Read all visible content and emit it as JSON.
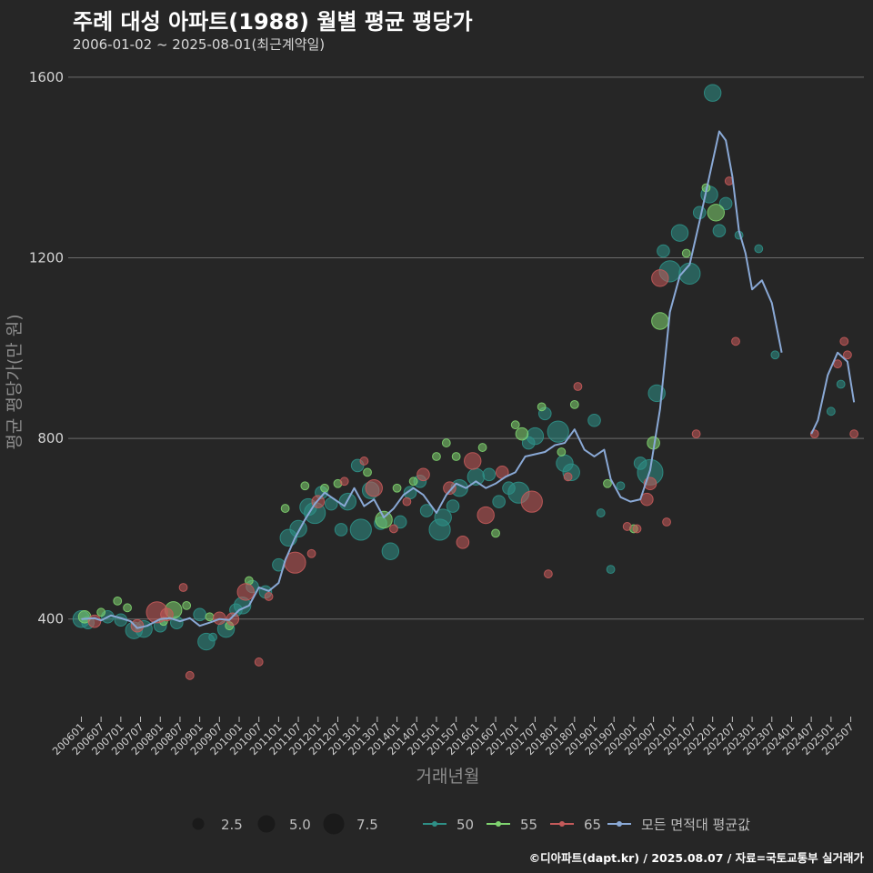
{
  "title": "주례 대성 아파트(1988) 월별 평균 평당가",
  "subtitle": "2006-01-02 ~ 2025-08-01(최근계약일)",
  "credit": "©디아파트(dapt.kr) / 2025.08.07 / 자료=국토교통부 실거래가",
  "colors": {
    "background": "#262626",
    "grid": "#6b6b6b",
    "s50": "#2e8f86",
    "s55": "#7fd36f",
    "s65": "#c45a5a",
    "avg": "#8aa9d6"
  },
  "chart_data": {
    "type": "scatter",
    "title": "주례 대성 아파트(1988) 월별 평균 평당가",
    "xlabel": "거래년월",
    "ylabel": "평균 평당가(만 원)",
    "ylim": [
      180,
      1650
    ],
    "xlim": [
      "2005-09",
      "2025-11"
    ],
    "yticks": [
      400,
      800,
      1200,
      1600
    ],
    "xticks": [
      "200601",
      "200607",
      "200701",
      "200707",
      "200801",
      "200807",
      "200901",
      "200907",
      "201001",
      "201007",
      "201101",
      "201107",
      "201201",
      "201207",
      "201301",
      "201307",
      "201401",
      "201407",
      "201501",
      "201507",
      "201601",
      "201607",
      "201701",
      "201707",
      "201801",
      "201807",
      "201901",
      "201907",
      "202001",
      "202007",
      "202101",
      "202107",
      "202201",
      "202207",
      "202301",
      "202307",
      "202401",
      "202407",
      "202501",
      "202507"
    ],
    "grid": true,
    "legend_position": "bottom",
    "size_legend": {
      "values": [
        "2.5",
        "5.0",
        "7.5"
      ]
    },
    "series_legend": [
      "50",
      "55",
      "65",
      "모든 면적대 평균값"
    ],
    "series": [
      {
        "name": "50",
        "points": [
          [
            "2006-01",
            400,
            3
          ],
          [
            "2006-03",
            392,
            2
          ],
          [
            "2006-09",
            405,
            2
          ],
          [
            "2007-01",
            398,
            2
          ],
          [
            "2007-05",
            375,
            3
          ],
          [
            "2007-08",
            378,
            3
          ],
          [
            "2008-01",
            385,
            2
          ],
          [
            "2008-06",
            392,
            2
          ],
          [
            "2009-01",
            410,
            2
          ],
          [
            "2009-03",
            350,
            3
          ],
          [
            "2009-05",
            360,
            1
          ],
          [
            "2009-09",
            378,
            3
          ],
          [
            "2009-12",
            420,
            2
          ],
          [
            "2010-02",
            430,
            3
          ],
          [
            "2010-05",
            472,
            2
          ],
          [
            "2010-09",
            460,
            2
          ],
          [
            "2011-01",
            520,
            2
          ],
          [
            "2011-04",
            580,
            3
          ],
          [
            "2011-07",
            600,
            3
          ],
          [
            "2011-10",
            648,
            3
          ],
          [
            "2011-12",
            635,
            4
          ],
          [
            "2012-02",
            680,
            2
          ],
          [
            "2012-05",
            655,
            2
          ],
          [
            "2012-08",
            598,
            2
          ],
          [
            "2012-10",
            660,
            3
          ],
          [
            "2013-01",
            740,
            2
          ],
          [
            "2013-02",
            598,
            4
          ],
          [
            "2013-05",
            685,
            3
          ],
          [
            "2013-08",
            612,
            2
          ],
          [
            "2013-11",
            550,
            3
          ],
          [
            "2014-02",
            615,
            2
          ],
          [
            "2014-05",
            680,
            2
          ],
          [
            "2014-08",
            705,
            2
          ],
          [
            "2014-10",
            640,
            2
          ],
          [
            "2015-02",
            598,
            4
          ],
          [
            "2015-03",
            625,
            3
          ],
          [
            "2015-06",
            650,
            2
          ],
          [
            "2015-08",
            690,
            3
          ],
          [
            "2016-01",
            715,
            3
          ],
          [
            "2016-05",
            720,
            2
          ],
          [
            "2016-08",
            660,
            2
          ],
          [
            "2016-11",
            690,
            2
          ],
          [
            "2017-02",
            680,
            4
          ],
          [
            "2017-05",
            790,
            2
          ],
          [
            "2017-07",
            805,
            3
          ],
          [
            "2017-10",
            855,
            2
          ],
          [
            "2018-02",
            815,
            4
          ],
          [
            "2018-04",
            745,
            3
          ],
          [
            "2018-06",
            725,
            3
          ],
          [
            "2019-01",
            840,
            2
          ],
          [
            "2019-03",
            635,
            1
          ],
          [
            "2019-06",
            510,
            1
          ],
          [
            "2019-09",
            695,
            1
          ],
          [
            "2020-03",
            745,
            2
          ],
          [
            "2020-06",
            725,
            5
          ],
          [
            "2020-08",
            900,
            3
          ],
          [
            "2020-10",
            1215,
            2
          ],
          [
            "2020-12",
            1170,
            4
          ],
          [
            "2021-03",
            1255,
            3
          ],
          [
            "2021-06",
            1165,
            4
          ],
          [
            "2021-09",
            1300,
            2
          ],
          [
            "2021-12",
            1340,
            3
          ],
          [
            "2022-01",
            1565,
            3
          ],
          [
            "2022-03",
            1260,
            2
          ],
          [
            "2022-05",
            1320,
            2
          ],
          [
            "2022-09",
            1250,
            1
          ],
          [
            "2023-03",
            1220,
            1
          ],
          [
            "2023-08",
            985,
            1
          ],
          [
            "2025-01",
            860,
            1
          ],
          [
            "2025-04",
            920,
            1
          ]
        ]
      },
      {
        "name": "55",
        "points": [
          [
            "2006-02",
            405,
            2
          ],
          [
            "2006-07",
            415,
            1
          ],
          [
            "2006-12",
            440,
            1
          ],
          [
            "2007-03",
            425,
            1
          ],
          [
            "2008-02",
            395,
            1
          ],
          [
            "2008-05",
            420,
            3
          ],
          [
            "2008-09",
            430,
            1
          ],
          [
            "2009-04",
            405,
            1
          ],
          [
            "2009-10",
            385,
            1
          ],
          [
            "2010-04",
            485,
            1
          ],
          [
            "2011-03",
            645,
            1
          ],
          [
            "2011-09",
            695,
            1
          ],
          [
            "2012-03",
            690,
            1
          ],
          [
            "2012-07",
            700,
            1
          ],
          [
            "2013-04",
            725,
            1
          ],
          [
            "2013-09",
            620,
            3
          ],
          [
            "2014-01",
            690,
            1
          ],
          [
            "2014-06",
            705,
            1
          ],
          [
            "2015-01",
            760,
            1
          ],
          [
            "2015-04",
            790,
            1
          ],
          [
            "2015-07",
            760,
            1
          ],
          [
            "2016-03",
            780,
            1
          ],
          [
            "2016-07",
            590,
            1
          ],
          [
            "2017-01",
            830,
            1
          ],
          [
            "2017-03",
            810,
            2
          ],
          [
            "2017-09",
            870,
            1
          ],
          [
            "2018-03",
            770,
            1
          ],
          [
            "2018-07",
            875,
            1
          ],
          [
            "2019-05",
            700,
            1
          ],
          [
            "2020-01",
            600,
            1
          ],
          [
            "2020-07",
            790,
            2
          ],
          [
            "2020-09",
            1060,
            3
          ],
          [
            "2021-05",
            1210,
            1
          ],
          [
            "2022-02",
            1300,
            3
          ],
          [
            "2021-11",
            1355,
            1
          ]
        ]
      },
      {
        "name": "65",
        "points": [
          [
            "2006-05",
            395,
            2
          ],
          [
            "2007-06",
            385,
            2
          ],
          [
            "2007-12",
            415,
            4
          ],
          [
            "2008-03",
            410,
            2
          ],
          [
            "2008-08",
            470,
            1
          ],
          [
            "2008-10",
            275,
            1
          ],
          [
            "2009-07",
            402,
            2
          ],
          [
            "2009-11",
            400,
            2
          ],
          [
            "2010-03",
            460,
            3
          ],
          [
            "2010-07",
            305,
            1
          ],
          [
            "2010-10",
            450,
            1
          ],
          [
            "2011-06",
            525,
            4
          ],
          [
            "2011-11",
            545,
            1
          ],
          [
            "2012-01",
            660,
            2
          ],
          [
            "2012-09",
            705,
            1
          ],
          [
            "2013-03",
            750,
            1
          ],
          [
            "2013-06",
            690,
            3
          ],
          [
            "2013-12",
            600,
            1
          ],
          [
            "2014-04",
            660,
            1
          ],
          [
            "2014-09",
            720,
            2
          ],
          [
            "2015-05",
            690,
            2
          ],
          [
            "2015-09",
            570,
            2
          ],
          [
            "2015-12",
            750,
            3
          ],
          [
            "2016-04",
            630,
            3
          ],
          [
            "2016-09",
            725,
            2
          ],
          [
            "2017-06",
            660,
            4
          ],
          [
            "2017-11",
            500,
            1
          ],
          [
            "2018-05",
            715,
            1
          ],
          [
            "2018-08",
            915,
            1
          ],
          [
            "2019-11",
            605,
            1
          ],
          [
            "2020-02",
            600,
            1
          ],
          [
            "2020-05",
            665,
            2
          ],
          [
            "2020-06",
            700,
            2
          ],
          [
            "2020-11",
            615,
            1
          ],
          [
            "2020-09",
            1155,
            3
          ],
          [
            "2021-08",
            810,
            1
          ],
          [
            "2022-06",
            1370,
            1
          ],
          [
            "2022-08",
            1015,
            1
          ],
          [
            "2024-08",
            810,
            1
          ],
          [
            "2025-03",
            965,
            1
          ],
          [
            "2025-05",
            1015,
            1
          ],
          [
            "2025-06",
            985,
            1
          ],
          [
            "2025-08",
            810,
            1
          ]
        ]
      }
    ],
    "avg_line": [
      [
        "2006-01",
        400
      ],
      [
        "2006-05",
        402
      ],
      [
        "2006-07",
        397
      ],
      [
        "2006-10",
        408
      ],
      [
        "2007-01",
        402
      ],
      [
        "2007-04",
        395
      ],
      [
        "2007-06",
        380
      ],
      [
        "2007-09",
        385
      ],
      [
        "2008-01",
        400
      ],
      [
        "2008-04",
        402
      ],
      [
        "2008-07",
        395
      ],
      [
        "2008-10",
        402
      ],
      [
        "2009-01",
        385
      ],
      [
        "2009-04",
        392
      ],
      [
        "2009-07",
        400
      ],
      [
        "2009-10",
        398
      ],
      [
        "2010-01",
        420
      ],
      [
        "2010-04",
        430
      ],
      [
        "2010-07",
        470
      ],
      [
        "2010-10",
        462
      ],
      [
        "2011-01",
        480
      ],
      [
        "2011-03",
        530
      ],
      [
        "2011-06",
        580
      ],
      [
        "2011-09",
        620
      ],
      [
        "2011-12",
        655
      ],
      [
        "2012-03",
        680
      ],
      [
        "2012-06",
        665
      ],
      [
        "2012-09",
        650
      ],
      [
        "2012-12",
        690
      ],
      [
        "2013-03",
        650
      ],
      [
        "2013-06",
        665
      ],
      [
        "2013-09",
        625
      ],
      [
        "2013-12",
        645
      ],
      [
        "2014-03",
        675
      ],
      [
        "2014-06",
        690
      ],
      [
        "2014-09",
        675
      ],
      [
        "2015-01",
        635
      ],
      [
        "2015-04",
        675
      ],
      [
        "2015-07",
        700
      ],
      [
        "2015-10",
        690
      ],
      [
        "2016-01",
        705
      ],
      [
        "2016-04",
        690
      ],
      [
        "2016-07",
        700
      ],
      [
        "2016-10",
        715
      ],
      [
        "2017-01",
        725
      ],
      [
        "2017-04",
        760
      ],
      [
        "2017-07",
        765
      ],
      [
        "2017-10",
        770
      ],
      [
        "2018-01",
        785
      ],
      [
        "2018-04",
        790
      ],
      [
        "2018-07",
        820
      ],
      [
        "2018-10",
        775
      ],
      [
        "2019-01",
        760
      ],
      [
        "2019-04",
        775
      ],
      [
        "2019-06",
        710
      ],
      [
        "2019-09",
        670
      ],
      [
        "2019-12",
        660
      ],
      [
        "2020-03",
        665
      ],
      [
        "2020-06",
        730
      ],
      [
        "2020-09",
        865
      ],
      [
        "2020-12",
        1080
      ],
      [
        "2021-03",
        1160
      ],
      [
        "2021-06",
        1185
      ],
      [
        "2021-09",
        1280
      ],
      [
        "2021-12",
        1380
      ],
      [
        "2022-03",
        1480
      ],
      [
        "2022-05",
        1460
      ],
      [
        "2022-07",
        1380
      ],
      [
        "2022-09",
        1260
      ],
      [
        "2022-11",
        1210
      ],
      [
        "2023-01",
        1130
      ],
      [
        "2023-04",
        1150
      ],
      [
        "2023-07",
        1100
      ],
      [
        "2023-10",
        990
      ],
      null,
      [
        "2024-07",
        810
      ],
      [
        "2024-09",
        840
      ],
      [
        "2024-12",
        940
      ],
      [
        "2025-03",
        990
      ],
      [
        "2025-06",
        970
      ],
      [
        "2025-08",
        880
      ]
    ]
  }
}
